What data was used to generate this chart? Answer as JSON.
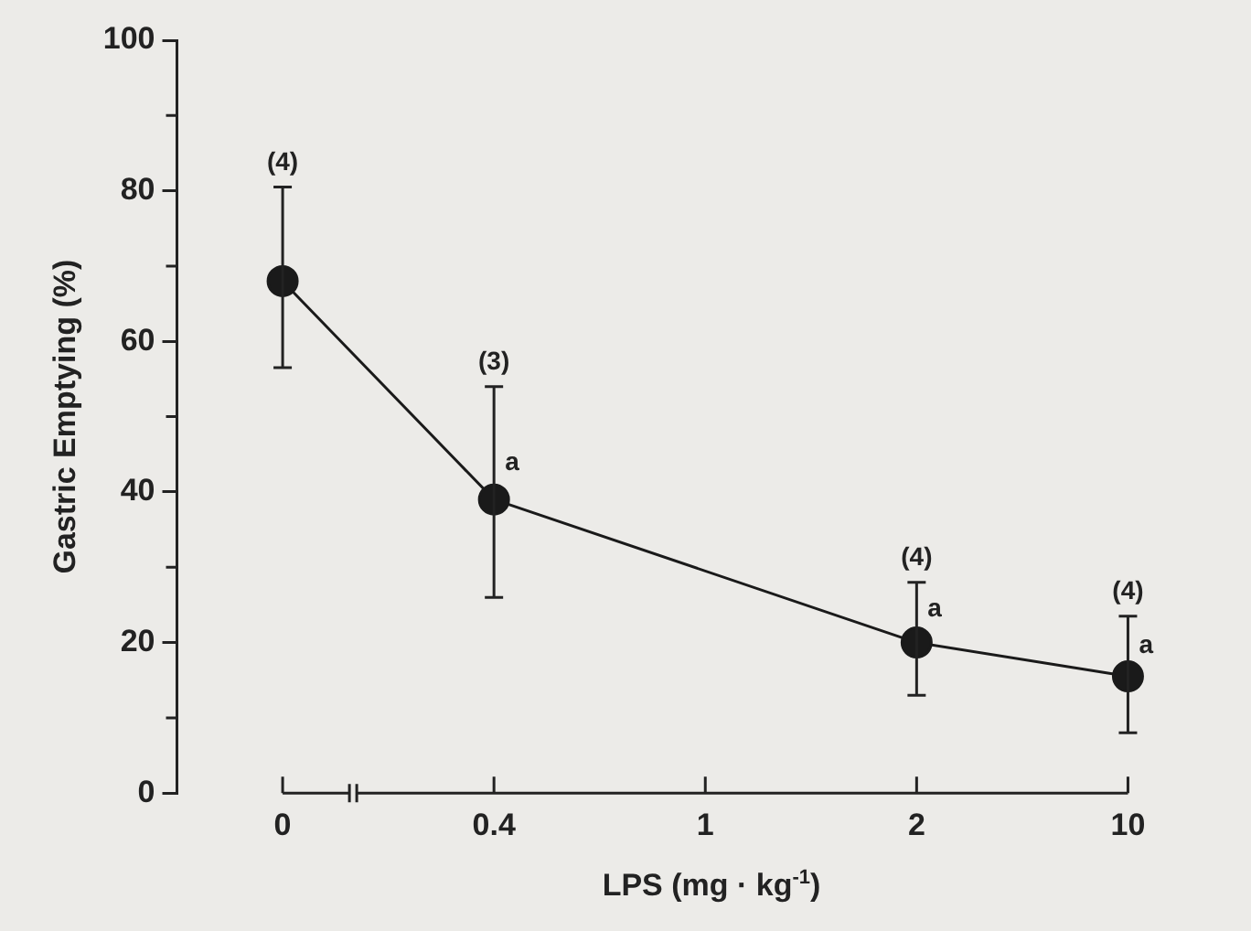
{
  "chart_data": {
    "type": "line",
    "xlabel": "LPS (mg · kg$^{-1}$)",
    "ylabel": "Gastric Emptying (%)",
    "categories": [
      "0",
      "0.4",
      "1",
      "2",
      "10"
    ],
    "series": [
      {
        "color": "#1a1a1a",
        "values": [
          68,
          39,
          null,
          20,
          15.5
        ],
        "errors": [
          [
            56.5,
            80.5
          ],
          [
            26,
            54
          ],
          null,
          [
            13,
            28
          ],
          [
            8,
            23.5
          ]
        ]
      }
    ],
    "ylim": [
      0,
      100
    ],
    "yticks": [
      0,
      20,
      40,
      60,
      80,
      100
    ],
    "marker": "circle",
    "line_style": "solid",
    "grid": false,
    "legend": false,
    "annotations": [
      {
        "text": "(4)",
        "x": "0",
        "y": 80.5
      },
      {
        "text": "(3)",
        "x": "0.4",
        "y": 54
      },
      {
        "text": "a",
        "x": "0.4",
        "y": 43.8
      },
      {
        "text": "(4)",
        "x": "2",
        "y": 28
      },
      {
        "text": "a",
        "x": "2",
        "y": 24.4
      },
      {
        "text": "(4)",
        "x": "10",
        "y": 23.5
      },
      {
        "text": "a",
        "x": "10",
        "y": 19.6
      }
    ]
  }
}
